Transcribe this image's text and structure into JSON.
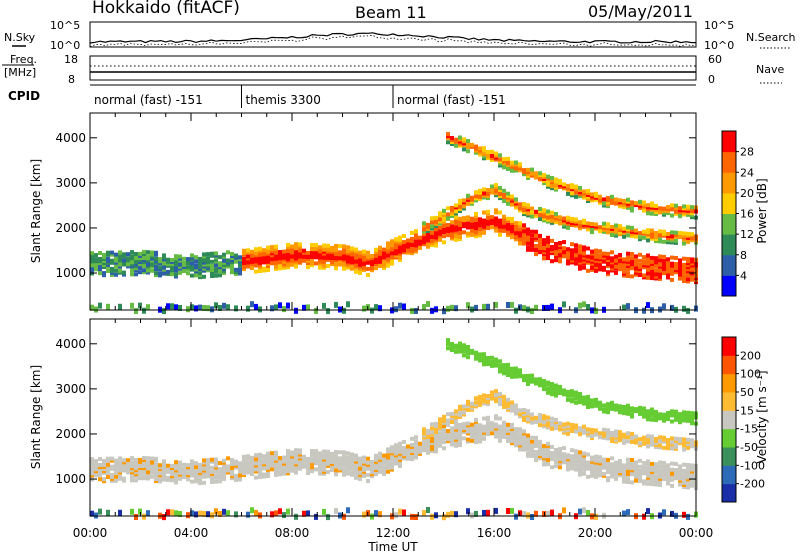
{
  "header": {
    "title": "Hokkaido (fitACF)",
    "beam": "Beam 11",
    "date": "05/May/2011"
  },
  "noise_panel": {
    "left_label": "N.Sky",
    "right_label": "N.Search",
    "left_ticks": [
      "10^5",
      "10^0"
    ],
    "right_ticks": [
      "10^5",
      "10^0"
    ]
  },
  "freq_panel": {
    "left_label_1": "Freq.",
    "left_label_2": "[MHz]",
    "right_label": "Nave",
    "left_ticks": [
      "18",
      "8"
    ],
    "right_ticks": [
      "60",
      "0"
    ]
  },
  "cpid_panel": {
    "label": "CPID",
    "segments": [
      {
        "label": "normal (fast) -151",
        "start": 0,
        "end": 6
      },
      {
        "label": "themis 3300",
        "start": 6,
        "end": 12
      },
      {
        "label": "normal (fast) -151",
        "start": 12,
        "end": 24
      }
    ]
  },
  "colors": {
    "power": [
      "#0000ff",
      "#2d5fa8",
      "#2e8b57",
      "#66bb44",
      "#ffcc00",
      "#ff9900",
      "#ff6600",
      "#ff0000"
    ],
    "velocity": [
      "#ff0000",
      "#ff5500",
      "#ff9900",
      "#ffbb33",
      "#c8c8c0",
      "#66cc33",
      "#3a8f5a",
      "#2d6ab8",
      "#1a2ea8"
    ]
  },
  "chart_data": [
    {
      "type": "heatmap",
      "title": "Power",
      "ylabel": "Slant Range [km]",
      "yticks": [
        "1000",
        "2000",
        "3000",
        "4000"
      ],
      "ylim": [
        180,
        4550
      ],
      "xlim": [
        0,
        24
      ],
      "colorbar_label": "Power [dB]",
      "colorbar_ticks": [
        "4",
        "8",
        "12",
        "16",
        "20",
        "24",
        "28"
      ],
      "bands": [
        {
          "name": "main band",
          "x": [
            0,
            2,
            4,
            6,
            8,
            10,
            11,
            12,
            14,
            16,
            18,
            20,
            22,
            24
          ],
          "y": [
            1250,
            1280,
            1200,
            1300,
            1450,
            1400,
            1250,
            1550,
            2000,
            2200,
            1600,
            1300,
            1200,
            1100
          ]
        },
        {
          "name": "upper band",
          "x": [
            13,
            15,
            16,
            17,
            19,
            22,
            24
          ],
          "y": [
            2000,
            2700,
            2900,
            2500,
            2150,
            1900,
            1800
          ]
        },
        {
          "name": "far band",
          "x": [
            14,
            16,
            18,
            20,
            22,
            24
          ],
          "y": [
            4100,
            3600,
            3100,
            2700,
            2500,
            2400
          ]
        }
      ]
    },
    {
      "type": "heatmap",
      "title": "Velocity",
      "ylabel": "Slant Range [km]",
      "yticks": [
        "1000",
        "2000",
        "3000",
        "4000"
      ],
      "ylim": [
        180,
        4550
      ],
      "xlim": [
        0,
        24
      ],
      "xlabel": "Time UT",
      "xticks": [
        "00:00",
        "04:00",
        "08:00",
        "12:00",
        "16:00",
        "20:00",
        "00:00"
      ],
      "colorbar_label": "Velocity [m s⁻¹]",
      "colorbar_ticks": [
        "200",
        "100",
        "50",
        "15",
        "-15",
        "-50",
        "-100",
        "-200"
      ]
    }
  ]
}
